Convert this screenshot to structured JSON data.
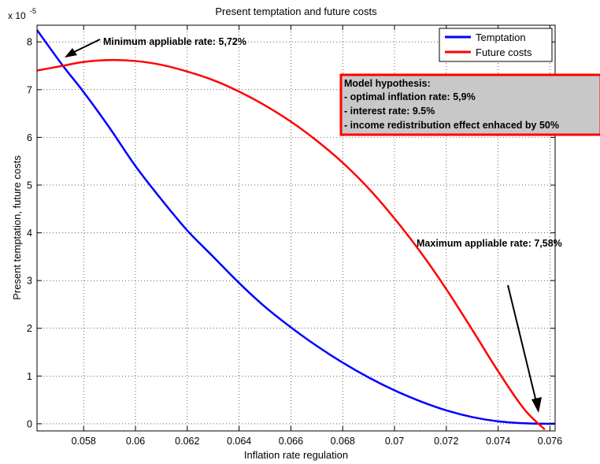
{
  "chart_data": {
    "type": "line",
    "title": "Present temptation and future costs",
    "xlabel": "Inflation rate regulation",
    "ylabel": "Present temptation, future costs",
    "y_exponent_label": "x 10",
    "y_exponent_power": "-5",
    "xlim": [
      0.0562,
      0.0762
    ],
    "ylim": [
      -0.15,
      8.35
    ],
    "x_ticks": [
      0.058,
      0.06,
      0.062,
      0.064,
      0.066,
      0.068,
      0.07,
      0.072,
      0.074,
      0.076
    ],
    "x_tick_labels": [
      "0.058",
      "0.06",
      "0.062",
      "0.064",
      "0.066",
      "0.068",
      "0.07",
      "0.072",
      "0.074",
      "0.076"
    ],
    "y_ticks": [
      0,
      1,
      2,
      3,
      4,
      5,
      6,
      7,
      8
    ],
    "y_tick_labels": [
      "0",
      "1",
      "2",
      "3",
      "4",
      "5",
      "6",
      "7",
      "8"
    ],
    "grid": true,
    "legend_position": "top-right",
    "series": [
      {
        "name": "Temptation",
        "color": "#0000ff",
        "x": [
          0.0562,
          0.0572,
          0.058,
          0.059,
          0.06,
          0.061,
          0.062,
          0.063,
          0.064,
          0.065,
          0.066,
          0.067,
          0.068,
          0.069,
          0.07,
          0.071,
          0.072,
          0.073,
          0.074,
          0.075,
          0.0758,
          0.0762
        ],
        "y": [
          8.25,
          7.5,
          6.95,
          6.2,
          5.4,
          4.7,
          4.05,
          3.5,
          2.95,
          2.45,
          2.02,
          1.63,
          1.28,
          0.97,
          0.7,
          0.47,
          0.28,
          0.14,
          0.05,
          0.01,
          0.0,
          0.0
        ]
      },
      {
        "name": "Future costs",
        "color": "#ff0000",
        "x": [
          0.0562,
          0.0572,
          0.058,
          0.059,
          0.06,
          0.061,
          0.062,
          0.063,
          0.064,
          0.065,
          0.066,
          0.067,
          0.068,
          0.069,
          0.07,
          0.071,
          0.072,
          0.073,
          0.074,
          0.075,
          0.0758
        ],
        "y": [
          7.4,
          7.5,
          7.58,
          7.62,
          7.6,
          7.52,
          7.38,
          7.2,
          6.96,
          6.67,
          6.33,
          5.93,
          5.47,
          4.93,
          4.3,
          3.6,
          2.82,
          1.97,
          1.1,
          0.31,
          -0.12
        ]
      }
    ],
    "annotations": {
      "min_rate": "Minimum appliable rate: 5,72%",
      "max_rate": "Maximum appliable rate: 7,58%",
      "hypothesis_title": "Model hypothesis:",
      "hypothesis_lines": [
        "- optimal inflation rate: 5,9%",
        "- interest rate: 9.5%",
        "- income redistribution effect enhaced by 50%"
      ]
    }
  }
}
